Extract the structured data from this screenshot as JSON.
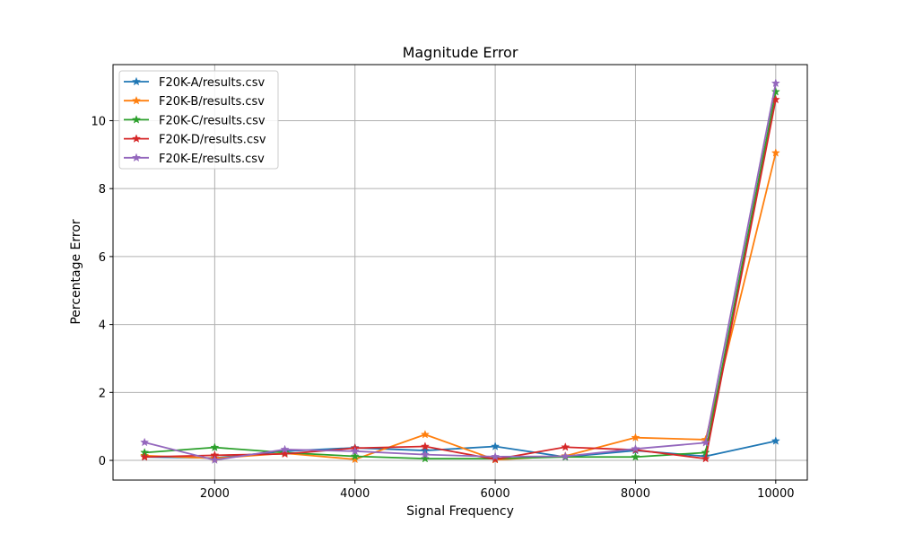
{
  "chart_data": {
    "type": "line",
    "title": "Magnitude Error",
    "xlabel": "Signal Frequency",
    "ylabel": "Percentage Error",
    "xlim": [
      550,
      10450
    ],
    "ylim": [
      -0.58,
      11.65
    ],
    "xticks": [
      2000,
      4000,
      6000,
      8000,
      10000
    ],
    "xtick_labels": [
      "2000",
      "4000",
      "6000",
      "8000",
      "10000"
    ],
    "yticks": [
      0,
      2,
      4,
      6,
      8,
      10
    ],
    "ytick_labels": [
      "0",
      "2",
      "4",
      "6",
      "8",
      "10"
    ],
    "grid": true,
    "legend_position": "upper-left",
    "marker": "star",
    "x": [
      1000,
      2000,
      3000,
      4000,
      5000,
      6000,
      7000,
      8000,
      9000,
      10000
    ],
    "series": [
      {
        "name": "F20K-A/results.csv",
        "color": "#1f77b4",
        "values": [
          0.1,
          0.07,
          0.27,
          0.37,
          0.29,
          0.41,
          0.1,
          0.29,
          0.12,
          0.57
        ]
      },
      {
        "name": "F20K-B/results.csv",
        "color": "#ff7f0e",
        "values": [
          0.14,
          0.06,
          0.21,
          0.03,
          0.76,
          0.02,
          0.13,
          0.67,
          0.61,
          9.05
        ]
      },
      {
        "name": "F20K-C/results.csv",
        "color": "#2ca02c",
        "values": [
          0.23,
          0.38,
          0.23,
          0.12,
          0.05,
          0.05,
          0.1,
          0.1,
          0.23,
          10.85
        ]
      },
      {
        "name": "F20K-D/results.csv",
        "color": "#d62728",
        "values": [
          0.1,
          0.15,
          0.19,
          0.36,
          0.41,
          0.03,
          0.39,
          0.31,
          0.05,
          10.62
        ]
      },
      {
        "name": "F20K-E/results.csv",
        "color": "#9467bd",
        "values": [
          0.53,
          0.01,
          0.32,
          0.27,
          0.17,
          0.11,
          0.12,
          0.34,
          0.52,
          11.1
        ]
      }
    ]
  }
}
